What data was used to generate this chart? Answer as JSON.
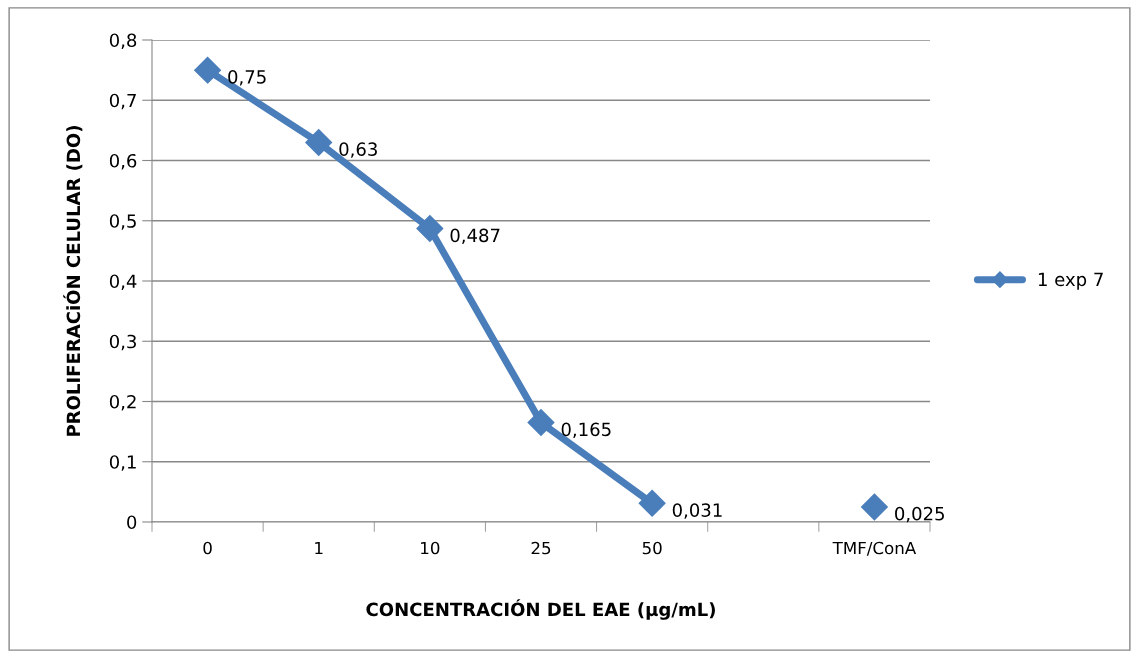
{
  "chart_data": {
    "type": "line",
    "xlabel": "CONCENTRACIÓN DEL EAE (µg/mL)",
    "ylabel": "PROLIFERACiÓN CELULAR (DO)",
    "categories": [
      "0",
      "1",
      "10",
      "25",
      "50",
      null,
      "TMF/ConA"
    ],
    "series": [
      {
        "name": "1 exp 7",
        "color": "#4a7ebb",
        "values": [
          0.75,
          0.63,
          0.487,
          0.165,
          0.031,
          null,
          0.025
        ],
        "value_labels": [
          "0,75",
          "0,63",
          "0,487",
          "0,165",
          "0,031",
          null,
          "0,025"
        ]
      }
    ],
    "ylim": [
      0,
      0.8
    ],
    "yticks": [
      0,
      {
        "value": 0.1,
        "label": "0,1"
      },
      {
        "value": 0.2,
        "label": "0,2"
      },
      {
        "value": 0.3,
        "label": "0,3"
      },
      {
        "value": 0.4,
        "label": "0,4"
      },
      {
        "value": 0.5,
        "label": "0,5"
      },
      {
        "value": 0.6,
        "label": "0,6"
      },
      {
        "value": 0.7,
        "label": "0,7"
      },
      {
        "value": 0.8,
        "label": "0,8"
      }
    ],
    "grid": "y",
    "legend": "right",
    "marker": "diamond",
    "line_style": "solid"
  }
}
